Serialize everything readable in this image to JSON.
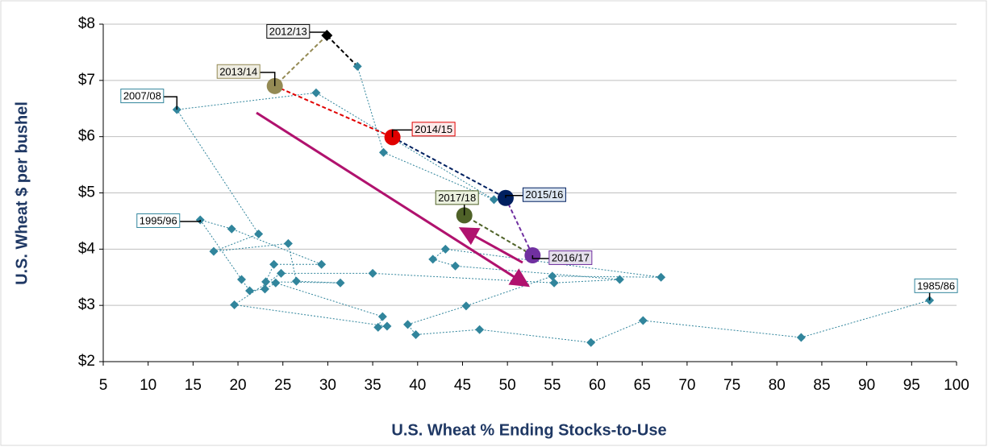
{
  "chart_data": {
    "type": "scatter",
    "xlabel": "U.S. Wheat % Ending Stocks-to-Use",
    "ylabel": "U.S. Wheat $ per bushel",
    "xlim": [
      5,
      100
    ],
    "ylim": [
      2,
      8
    ],
    "xticks": [
      5,
      10,
      15,
      20,
      25,
      30,
      35,
      40,
      45,
      50,
      55,
      60,
      65,
      70,
      75,
      80,
      85,
      90,
      95,
      100
    ],
    "yticks": [
      {
        "value": 2,
        "label": "$2"
      },
      {
        "value": 3,
        "label": "$3"
      },
      {
        "value": 4,
        "label": "$4"
      },
      {
        "value": 5,
        "label": "$5"
      },
      {
        "value": 6,
        "label": "$6"
      },
      {
        "value": 7,
        "label": "$7"
      },
      {
        "value": 8,
        "label": "$8"
      }
    ],
    "grid": true,
    "series": [
      {
        "color": "#31859c",
        "marker": "diamond",
        "x": [
          97,
          82.7,
          65.1,
          59.3,
          46.9,
          39.8,
          38.9,
          45.4,
          55.0,
          67.1,
          43.1,
          41.7,
          44.2,
          62.5,
          55.2,
          35.0,
          24.8,
          19.6,
          36.6,
          35.6,
          36.1,
          24.2,
          23.0,
          21.3,
          20.4,
          15.8,
          19.3,
          29.3,
          24.0,
          23.1,
          31.4,
          26.5,
          25.6,
          17.3,
          22.3,
          13.2,
          28.7,
          48.5,
          36.2,
          33.3
        ],
        "values": [
          3.09,
          2.43,
          2.73,
          2.34,
          2.57,
          2.48,
          2.66,
          2.99,
          3.52,
          3.5,
          4.0,
          3.82,
          3.7,
          3.46,
          3.4,
          3.57,
          3.57,
          3.01,
          2.63,
          2.61,
          2.8,
          3.4,
          3.29,
          3.26,
          3.46,
          4.52,
          4.36,
          3.73,
          3.73,
          3.42,
          3.4,
          3.43,
          4.1,
          3.96,
          4.27,
          6.48,
          6.78,
          4.88,
          5.72,
          7.25
        ],
        "labels": [
          "1985/86",
          null,
          null,
          null,
          null,
          null,
          null,
          null,
          null,
          null,
          null,
          null,
          null,
          null,
          null,
          null,
          null,
          null,
          null,
          null,
          null,
          null,
          null,
          null,
          null,
          "1995/96",
          null,
          null,
          null,
          null,
          null,
          null,
          null,
          null,
          null,
          "2007/08",
          null,
          null,
          null,
          null
        ]
      },
      {
        "name": "2012/13",
        "color": "#000000",
        "marker": "diamond",
        "x": [
          29.9
        ],
        "values": [
          7.8
        ]
      },
      {
        "name": "2013/14",
        "color": "#948a54",
        "marker": "circle",
        "x": [
          24.1
        ],
        "values": [
          6.9
        ]
      },
      {
        "name": "2014/15",
        "color": "#e00000",
        "marker": "circle",
        "x": [
          37.2
        ],
        "values": [
          5.99
        ]
      },
      {
        "name": "2015/16",
        "color": "#002060",
        "marker": "circle",
        "x": [
          49.8
        ],
        "values": [
          4.91
        ]
      },
      {
        "name": "2016/17",
        "color": "#7030a0",
        "marker": "circle",
        "x": [
          52.8
        ],
        "values": [
          3.89
        ]
      },
      {
        "name": "2017/18",
        "color": "#4f6228",
        "marker": "circle",
        "x": [
          45.2
        ],
        "values": [
          4.6
        ]
      }
    ]
  }
}
